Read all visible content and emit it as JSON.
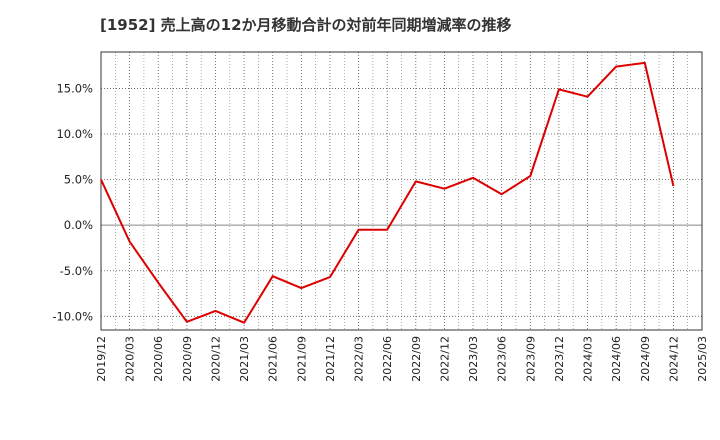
{
  "chart_data": {
    "type": "line",
    "title": "[1952]  売上高の12か月移動合計の対前年同期増減率の推移",
    "xlabel": "",
    "ylabel": "",
    "ylim": [
      -11.5,
      19.0
    ],
    "y_ticks": [
      15.0,
      10.0,
      5.0,
      0.0,
      -5.0,
      -10.0
    ],
    "y_tick_labels": [
      "15.0%",
      "10.0%",
      "5.0%",
      "0.0%",
      "-5.0%",
      "-10.0%"
    ],
    "x_tick_labels": [
      "2019/12",
      "2020/03",
      "2020/06",
      "2020/09",
      "2020/12",
      "2021/03",
      "2021/06",
      "2021/09",
      "2021/12",
      "2022/03",
      "2022/06",
      "2022/09",
      "2022/12",
      "2023/03",
      "2023/06",
      "2023/09",
      "2023/12",
      "2024/03",
      "2024/06",
      "2024/09",
      "2024/12",
      "2025/03"
    ],
    "grid": true,
    "series": [
      {
        "name": "増減率",
        "color": "#dd0000",
        "x": [
          "2019/12",
          "2020/03",
          "2020/06",
          "2020/09",
          "2020/12",
          "2021/03",
          "2021/06",
          "2021/09",
          "2021/12",
          "2022/03",
          "2022/06",
          "2022/09",
          "2022/12",
          "2023/03",
          "2023/06",
          "2023/09",
          "2023/12",
          "2024/03",
          "2024/06",
          "2024/09",
          "2024/12"
        ],
        "values": [
          5.0,
          -1.8,
          -6.3,
          -10.6,
          -9.4,
          -10.7,
          -5.6,
          -6.9,
          -5.7,
          -0.5,
          -0.5,
          4.8,
          4.0,
          5.2,
          3.4,
          5.4,
          14.9,
          14.1,
          17.4,
          17.8,
          4.3
        ]
      }
    ]
  }
}
